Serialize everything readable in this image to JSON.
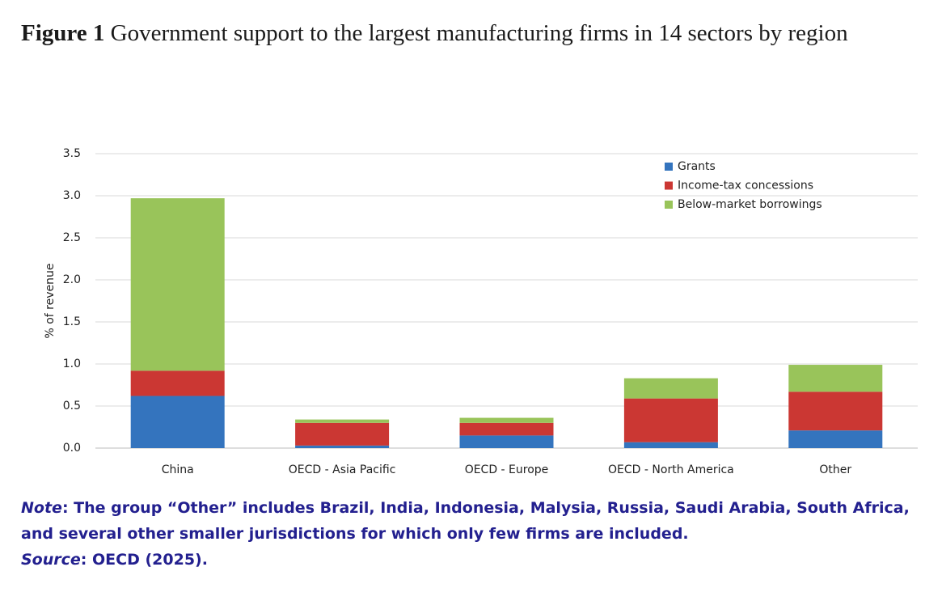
{
  "chart_data": {
    "type": "bar",
    "stacked": true,
    "figure_label": "Figure 1",
    "title": "Government support to the largest manufacturing firms in 14 sectors by region",
    "y_label": "% of revenue",
    "categories": [
      "China",
      "OECD - Asia Pacific",
      "OECD - Europe",
      "OECD - North America",
      "Other"
    ],
    "series": [
      {
        "name": "Grants",
        "color": "#3474be",
        "values": [
          0.62,
          0.03,
          0.15,
          0.07,
          0.21
        ]
      },
      {
        "name": "Income-tax concessions",
        "color": "#cb3733",
        "values": [
          0.3,
          0.27,
          0.15,
          0.52,
          0.46
        ]
      },
      {
        "name": "Below-market borrowings",
        "color": "#99c45a",
        "values": [
          2.05,
          0.04,
          0.06,
          0.24,
          0.32
        ]
      }
    ],
    "ylim": [
      0,
      3.5
    ],
    "yticks": [
      {
        "value": 0,
        "label": "0.0"
      },
      0.5,
      {
        "value": 1,
        "label": "1.0"
      },
      1.5,
      {
        "value": 2,
        "label": "2.0"
      },
      2.5,
      {
        "value": 3,
        "label": "3.0"
      },
      3.5
    ],
    "grid": true,
    "legend": "top-right",
    "note": {
      "label": "Note",
      "text": ": The group “Other” includes Brazil, India, Indonesia, Malysia, Russia, Saudi Arabia, South Africa, and several other smaller jurisdictions for which only few firms are included."
    },
    "source": {
      "label": "Source",
      "text": ": OECD (2025)."
    }
  }
}
